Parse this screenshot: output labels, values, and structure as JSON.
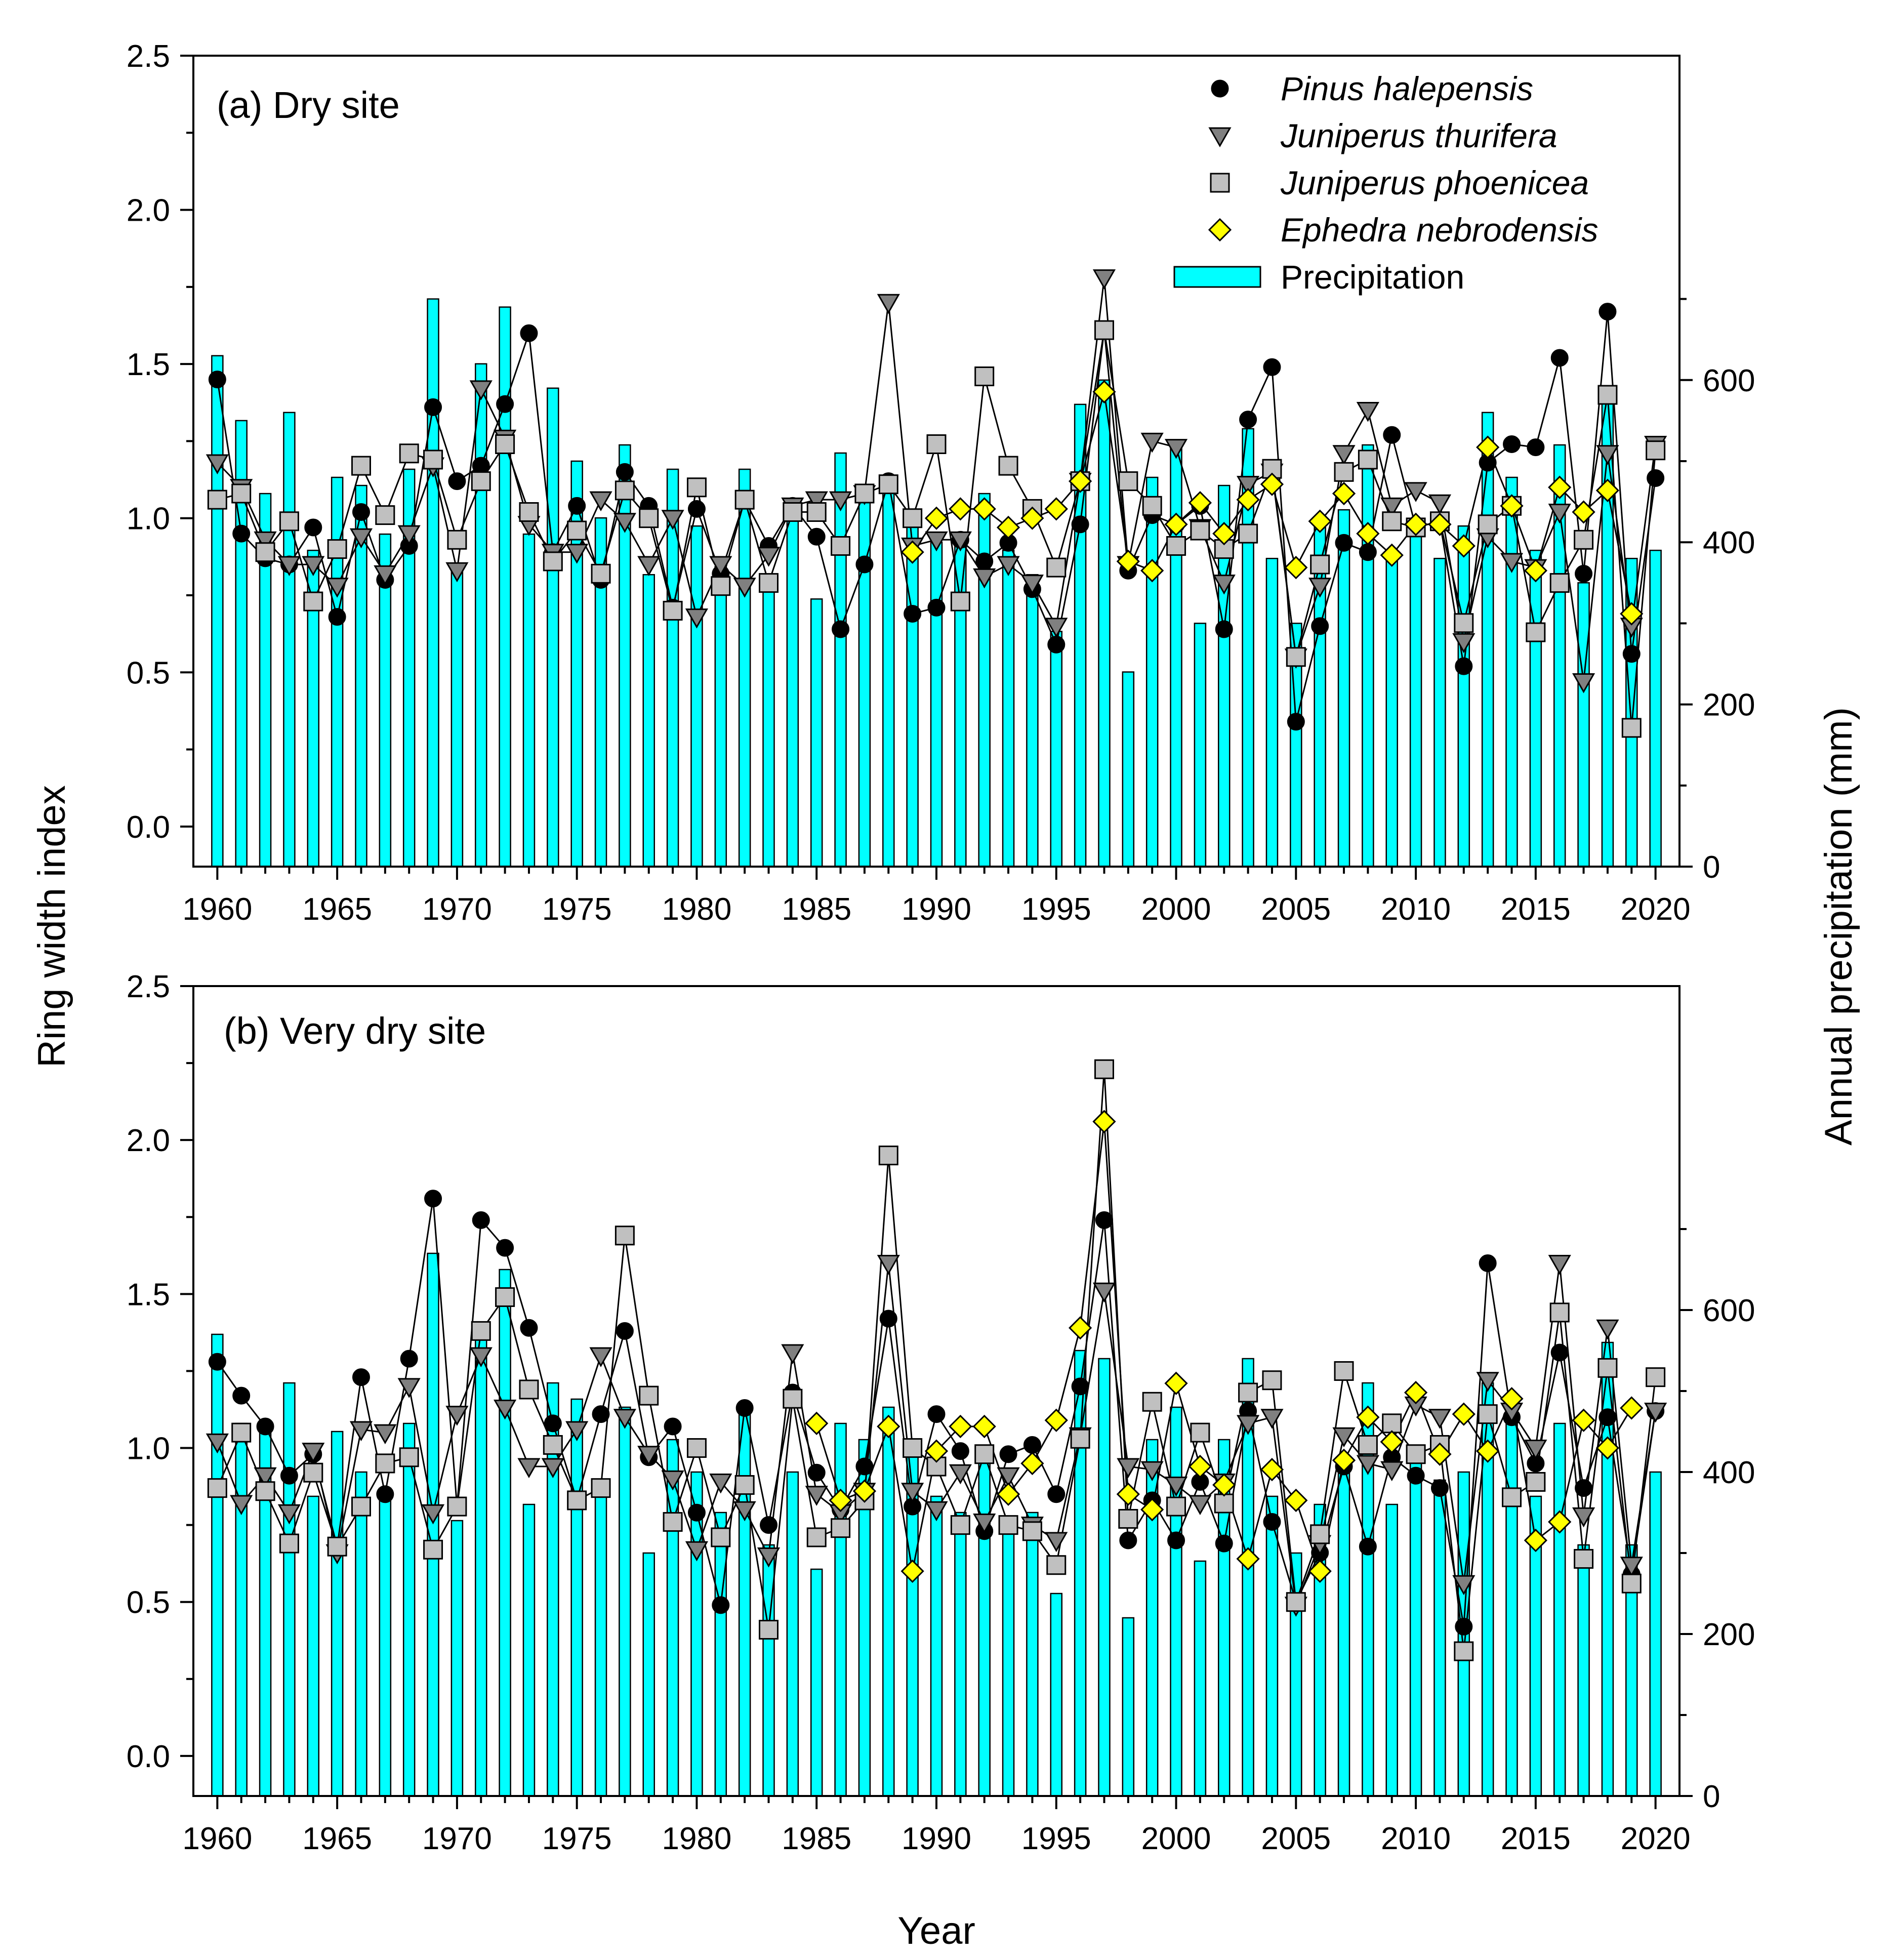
{
  "chart_data": [
    {
      "panel": "a",
      "type": "line",
      "title": "(a) Dry site",
      "xlabel": "Year",
      "ylabel": "Ring width index",
      "y2label": "Annual precipitation (mm)",
      "x": [
        1960,
        1961,
        1962,
        1963,
        1964,
        1965,
        1966,
        1967,
        1968,
        1969,
        1970,
        1971,
        1972,
        1973,
        1974,
        1975,
        1976,
        1977,
        1978,
        1979,
        1980,
        1981,
        1982,
        1983,
        1984,
        1985,
        1986,
        1987,
        1988,
        1989,
        1990,
        1991,
        1992,
        1993,
        1994,
        1995,
        1996,
        1997,
        1998,
        1999,
        2000,
        2001,
        2002,
        2003,
        2004,
        2005,
        2006,
        2007,
        2008,
        2009,
        2010,
        2011,
        2012,
        2013,
        2014,
        2015,
        2016,
        2017,
        2018,
        2019,
        2020
      ],
      "xlim": [
        1959,
        2021
      ],
      "xticks": [
        1960,
        1965,
        1970,
        1975,
        1980,
        1985,
        1990,
        1995,
        2000,
        2005,
        2010,
        2015,
        2020
      ],
      "ylim": [
        -0.13,
        2.5
      ],
      "yticks": [
        0.0,
        0.5,
        1.0,
        1.5,
        2.0,
        2.5
      ],
      "ytick_labels": [
        "0.0",
        "0.5",
        "1.0",
        "1.5",
        "2.0",
        "2.5"
      ],
      "y2lim": [
        0,
        1000
      ],
      "y2ticks": [
        0,
        200,
        400,
        600
      ],
      "series": [
        {
          "name": "Pinus halepensis",
          "marker": "circle",
          "color": "#000000",
          "values": [
            1.45,
            0.95,
            0.87,
            0.85,
            0.97,
            0.68,
            1.02,
            0.8,
            0.91,
            1.36,
            1.12,
            1.17,
            1.37,
            1.6,
            0.89,
            1.04,
            0.8,
            1.15,
            1.04,
            0.71,
            1.03,
            0.82,
            1.06,
            0.91,
            1.04,
            0.94,
            0.64,
            0.85,
            1.12,
            0.69,
            0.71,
            0.93,
            0.86,
            0.92,
            0.77,
            0.59,
            0.98,
            1.61,
            0.83,
            1.01,
            0.98,
            1.04,
            0.64,
            1.32,
            1.49,
            0.34,
            0.65,
            0.92,
            0.89,
            1.27,
            0.97,
            0.99,
            0.52,
            1.18,
            1.24,
            1.23,
            1.52,
            0.82,
            1.67,
            0.56,
            1.13
          ]
        },
        {
          "name": "Juniperus thurifera",
          "marker": "triangle-down",
          "color": "#808080",
          "values": [
            1.18,
            1.1,
            0.93,
            0.85,
            0.85,
            0.78,
            0.94,
            0.82,
            0.95,
            1.17,
            0.83,
            1.42,
            1.26,
            0.98,
            0.89,
            0.89,
            1.06,
            0.99,
            0.85,
            1.0,
            0.68,
            0.85,
            0.78,
            0.88,
            1.04,
            1.06,
            1.06,
            1.08,
            1.7,
            0.91,
            0.93,
            0.93,
            0.81,
            0.85,
            0.79,
            0.65,
            1.12,
            1.78,
            0.85,
            1.25,
            1.23,
            0.97,
            0.79,
            1.11,
            1.15,
            0.55,
            0.78,
            1.21,
            1.35,
            1.04,
            1.09,
            1.05,
            0.6,
            0.94,
            0.86,
            0.84,
            1.02,
            0.47,
            1.21,
            0.65,
            1.24
          ]
        },
        {
          "name": "Juniperus phoenicea",
          "marker": "square",
          "color": "#c0c0c0",
          "values": [
            1.06,
            1.08,
            0.89,
            0.99,
            0.73,
            0.9,
            1.17,
            1.01,
            1.21,
            1.19,
            0.93,
            1.12,
            1.24,
            1.02,
            0.86,
            0.96,
            0.82,
            1.09,
            1.0,
            0.7,
            1.1,
            0.78,
            1.06,
            0.79,
            1.02,
            1.02,
            0.91,
            1.08,
            1.11,
            1.0,
            1.24,
            0.73,
            1.46,
            1.17,
            1.03,
            0.84,
            1.12,
            1.61,
            1.12,
            1.04,
            0.91,
            0.96,
            0.9,
            0.95,
            1.16,
            0.55,
            0.85,
            1.15,
            1.19,
            0.99,
            0.97,
            0.99,
            0.66,
            0.98,
            1.04,
            0.63,
            0.79,
            0.93,
            1.4,
            0.32,
            1.22
          ]
        },
        {
          "name": "Ephedra nebrodensis",
          "marker": "diamond",
          "color": "#ffff00",
          "values": [
            null,
            null,
            null,
            null,
            null,
            null,
            null,
            null,
            null,
            null,
            null,
            null,
            null,
            null,
            null,
            null,
            null,
            null,
            null,
            null,
            null,
            null,
            null,
            null,
            null,
            null,
            null,
            null,
            null,
            0.89,
            1.0,
            1.03,
            1.03,
            0.97,
            1.0,
            1.03,
            1.12,
            1.41,
            0.86,
            0.83,
            0.98,
            1.05,
            0.95,
            1.06,
            1.11,
            0.84,
            0.99,
            1.08,
            0.95,
            0.88,
            0.98,
            0.98,
            0.91,
            1.23,
            1.04,
            0.83,
            1.1,
            1.02,
            1.09,
            0.69,
            null
          ]
        },
        {
          "name": "Precipitation",
          "type": "bar",
          "axis": "right",
          "color": "#00ffff",
          "values": [
            630,
            550,
            460,
            560,
            390,
            480,
            470,
            410,
            490,
            700,
            370,
            620,
            690,
            410,
            590,
            500,
            430,
            520,
            360,
            490,
            420,
            370,
            490,
            360,
            450,
            330,
            510,
            470,
            480,
            420,
            400,
            400,
            460,
            390,
            360,
            290,
            570,
            600,
            240,
            480,
            520,
            300,
            470,
            540,
            380,
            300,
            430,
            440,
            520,
            380,
            410,
            380,
            420,
            560,
            480,
            390,
            520,
            350,
            590,
            380,
            390
          ]
        }
      ],
      "legend": [
        "Pinus halepensis",
        "Juniperus thurifera",
        "Juniperus phoenicea",
        "Ephedra nebrodensis",
        "Precipitation"
      ]
    },
    {
      "panel": "b",
      "type": "line",
      "title": "(b) Very dry site",
      "xlabel": "Year",
      "ylabel": "Ring width index",
      "y2label": "Annual precipitation (mm)",
      "x": [
        1960,
        1961,
        1962,
        1963,
        1964,
        1965,
        1966,
        1967,
        1968,
        1969,
        1970,
        1971,
        1972,
        1973,
        1974,
        1975,
        1976,
        1977,
        1978,
        1979,
        1980,
        1981,
        1982,
        1983,
        1984,
        1985,
        1986,
        1987,
        1988,
        1989,
        1990,
        1991,
        1992,
        1993,
        1994,
        1995,
        1996,
        1997,
        1998,
        1999,
        2000,
        2001,
        2002,
        2003,
        2004,
        2005,
        2006,
        2007,
        2008,
        2009,
        2010,
        2011,
        2012,
        2013,
        2014,
        2015,
        2016,
        2017,
        2018,
        2019,
        2020
      ],
      "xlim": [
        1959,
        2021
      ],
      "xticks": [
        1960,
        1965,
        1970,
        1975,
        1980,
        1985,
        1990,
        1995,
        2000,
        2005,
        2010,
        2015,
        2020
      ],
      "ylim": [
        -0.13,
        2.5
      ],
      "yticks": [
        0.0,
        0.5,
        1.0,
        1.5,
        2.0,
        2.5
      ],
      "ytick_labels": [
        "0.0",
        "0.5",
        "1.0",
        "1.5",
        "2.0",
        "2.5"
      ],
      "y2lim": [
        0,
        1000
      ],
      "y2ticks": [
        0,
        200,
        400,
        600
      ],
      "series": [
        {
          "name": "Pinus halepensis",
          "marker": "circle",
          "color": "#000000",
          "values": [
            1.28,
            1.17,
            1.07,
            0.91,
            0.98,
            0.68,
            1.23,
            0.85,
            1.29,
            1.81,
            0.81,
            1.74,
            1.65,
            1.39,
            1.08,
            0.83,
            1.11,
            1.38,
            0.97,
            1.07,
            0.79,
            0.49,
            1.13,
            0.75,
            1.18,
            0.92,
            0.8,
            0.94,
            1.42,
            0.81,
            1.11,
            0.99,
            0.73,
            0.98,
            1.01,
            0.85,
            1.2,
            1.74,
            0.7,
            0.83,
            0.7,
            0.89,
            0.69,
            1.12,
            0.76,
            0.5,
            0.66,
            0.94,
            0.68,
            0.97,
            0.91,
            0.87,
            0.42,
            1.6,
            1.1,
            0.95,
            1.31,
            0.87,
            1.1,
            0.59,
            1.12
          ]
        },
        {
          "name": "Juniperus thurifera",
          "marker": "triangle-down",
          "color": "#808080",
          "values": [
            1.02,
            0.82,
            0.91,
            0.79,
            0.99,
            0.66,
            1.06,
            1.05,
            1.2,
            0.79,
            1.11,
            1.3,
            1.13,
            0.94,
            0.94,
            1.06,
            1.3,
            1.1,
            0.98,
            0.9,
            0.67,
            0.89,
            0.8,
            0.65,
            1.31,
            0.85,
            0.79,
            0.86,
            1.6,
            0.86,
            0.8,
            0.92,
            0.76,
            0.91,
            0.75,
            0.7,
            1.04,
            1.51,
            0.94,
            0.93,
            0.88,
            0.82,
            0.89,
            1.08,
            1.1,
            0.49,
            0.69,
            1.04,
            0.95,
            0.93,
            1.14,
            1.1,
            0.56,
            1.22,
            1.12,
            1.0,
            1.6,
            0.78,
            1.39,
            0.62,
            1.12
          ]
        },
        {
          "name": "Juniperus phoenicea",
          "marker": "square",
          "color": "#c0c0c0",
          "values": [
            0.87,
            1.05,
            0.86,
            0.69,
            0.92,
            0.68,
            0.81,
            0.95,
            0.97,
            0.67,
            0.81,
            1.38,
            1.49,
            1.19,
            1.01,
            0.83,
            0.87,
            1.69,
            1.17,
            0.76,
            1.0,
            0.71,
            0.88,
            0.41,
            1.16,
            0.71,
            0.74,
            0.83,
            1.95,
            1.0,
            0.94,
            0.75,
            0.98,
            0.75,
            0.73,
            0.62,
            1.03,
            2.23,
            0.77,
            1.15,
            0.81,
            1.05,
            0.82,
            1.18,
            1.22,
            0.5,
            0.72,
            1.25,
            1.01,
            1.08,
            0.98,
            1.01,
            0.34,
            1.11,
            0.84,
            0.89,
            1.44,
            0.64,
            1.26,
            0.56,
            1.23
          ]
        },
        {
          "name": "Ephedra nebrodensis",
          "marker": "diamond",
          "color": "#ffff00",
          "values": [
            null,
            null,
            null,
            null,
            null,
            null,
            null,
            null,
            null,
            null,
            null,
            null,
            null,
            null,
            null,
            null,
            null,
            null,
            null,
            null,
            null,
            null,
            null,
            null,
            null,
            1.08,
            0.83,
            0.86,
            1.07,
            0.6,
            0.99,
            1.07,
            1.07,
            0.85,
            0.95,
            1.09,
            1.39,
            2.06,
            0.85,
            0.8,
            1.21,
            0.94,
            0.88,
            0.64,
            0.93,
            0.83,
            0.6,
            0.96,
            1.1,
            1.02,
            1.18,
            0.98,
            1.11,
            0.99,
            1.16,
            0.7,
            0.76,
            1.09,
            1.0,
            1.13,
            null
          ]
        },
        {
          "name": "Precipitation",
          "type": "bar",
          "axis": "right",
          "color": "#00ffff",
          "values": [
            570,
            460,
            450,
            510,
            370,
            450,
            400,
            380,
            460,
            670,
            340,
            570,
            650,
            360,
            510,
            490,
            390,
            480,
            300,
            440,
            400,
            350,
            480,
            310,
            400,
            280,
            460,
            440,
            480,
            440,
            370,
            350,
            430,
            330,
            350,
            250,
            550,
            540,
            220,
            440,
            480,
            290,
            440,
            540,
            370,
            300,
            360,
            400,
            510,
            360,
            420,
            390,
            400,
            510,
            470,
            370,
            460,
            310,
            560,
            310,
            400
          ]
        }
      ],
      "legend": []
    }
  ]
}
